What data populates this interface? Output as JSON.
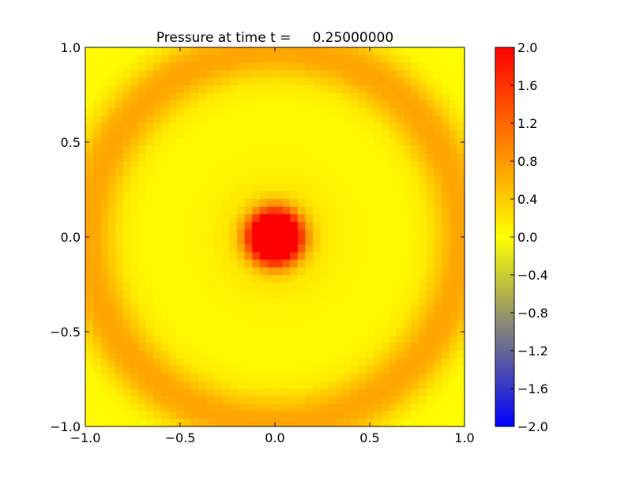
{
  "chart_data": {
    "type": "heatmap",
    "title": "Pressure at time t =     0.25000000",
    "xlabel": "",
    "ylabel": "",
    "xlim": [
      -1.0,
      1.0
    ],
    "ylim": [
      -1.0,
      1.0
    ],
    "grid_cells": 50,
    "x_ticks": [
      "−1.0",
      "−0.5",
      "0.0",
      "0.5",
      "1.0"
    ],
    "x_tick_values": [
      -1.0,
      -0.5,
      0.0,
      0.5,
      1.0
    ],
    "y_ticks": [
      "−1.0",
      "−0.5",
      "0.0",
      "0.5",
      "1.0"
    ],
    "y_tick_values": [
      -1.0,
      -0.5,
      0.0,
      0.5,
      1.0
    ],
    "radial_profile": {
      "r": [
        0.0,
        0.08,
        0.12,
        0.16,
        0.2,
        0.25,
        0.35,
        0.5,
        0.7,
        0.8,
        0.88,
        0.94,
        1.0,
        1.06,
        1.12,
        1.2,
        1.5
      ],
      "pressure": [
        3.0,
        2.6,
        2.0,
        1.1,
        0.5,
        0.2,
        0.1,
        0.05,
        0.05,
        0.15,
        0.45,
        0.68,
        0.72,
        0.6,
        0.3,
        0.05,
        0.0
      ]
    },
    "colorbar": {
      "range": [
        -2.0,
        2.0
      ],
      "colors": [
        "#0000ff",
        "#ffff00",
        "#ff0000"
      ],
      "ticks": [
        "2.0",
        "1.6",
        "1.2",
        "0.8",
        "0.4",
        "0.0",
        "−0.4",
        "−0.8",
        "−1.2",
        "−1.6",
        "−2.0"
      ],
      "tick_values": [
        2.0,
        1.6,
        1.2,
        0.8,
        0.4,
        0.0,
        -0.4,
        -0.8,
        -1.2,
        -1.6,
        -2.0
      ]
    }
  }
}
